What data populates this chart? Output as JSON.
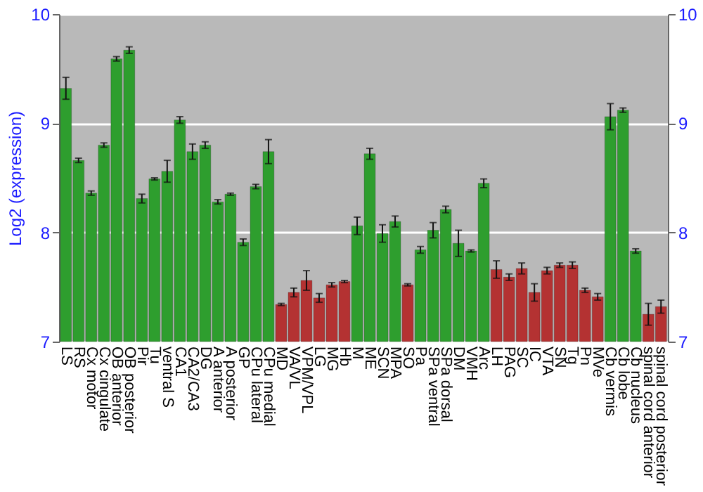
{
  "chart_data": {
    "type": "bar",
    "ylabel": "Log2 (expression)",
    "categories": [
      "LS",
      "RS",
      "Cx motor",
      "Cx cingulate",
      "OB anterior",
      "OB posterior",
      "Pir",
      "Tu",
      "ventral S",
      "CA1",
      "CA2/CA3",
      "DG",
      "A anterior",
      "A posterior",
      "GP",
      "CPu lateral",
      "CPu medial",
      "MD",
      "VA/VL",
      "VPM/VPL",
      "LG",
      "MG",
      "Hb",
      "M",
      "ME",
      "SCN",
      "MPA",
      "SO",
      "Pa",
      "SPa ventral",
      "SPa dorsal",
      "DM",
      "VMH",
      "Arc",
      "LH",
      "PAG",
      "SC",
      "IC",
      "VTA",
      "SN",
      "Tg",
      "Pn",
      "MVe",
      "Cb vermis",
      "Cb lobe",
      "Cb nucleus",
      "spinal cord anterior",
      "spinal cord posterior"
    ],
    "values": [
      9.32,
      8.66,
      8.36,
      8.8,
      9.59,
      9.67,
      8.31,
      8.49,
      8.56,
      9.03,
      8.74,
      8.8,
      8.28,
      8.35,
      7.91,
      8.42,
      8.74,
      7.34,
      7.45,
      7.56,
      7.4,
      7.52,
      7.55,
      8.06,
      8.72,
      7.99,
      8.1,
      7.52,
      7.84,
      8.02,
      8.21,
      7.9,
      7.83,
      8.45,
      7.66,
      7.59,
      7.67,
      7.45,
      7.65,
      7.7,
      7.7,
      7.47,
      7.41,
      9.06,
      9.12,
      7.83,
      7.25,
      7.32
    ],
    "errors": [
      0.1,
      0.02,
      0.02,
      0.02,
      0.02,
      0.03,
      0.04,
      0.01,
      0.1,
      0.03,
      0.07,
      0.03,
      0.02,
      0.01,
      0.03,
      0.02,
      0.11,
      0.01,
      0.04,
      0.09,
      0.04,
      0.02,
      0.01,
      0.08,
      0.05,
      0.08,
      0.05,
      0.01,
      0.03,
      0.07,
      0.03,
      0.12,
      0.01,
      0.04,
      0.08,
      0.03,
      0.05,
      0.08,
      0.03,
      0.02,
      0.03,
      0.02,
      0.03,
      0.12,
      0.02,
      0.02,
      0.1,
      0.06
    ],
    "colors": [
      "#2e9e2e",
      "#2e9e2e",
      "#2e9e2e",
      "#2e9e2e",
      "#2e9e2e",
      "#2e9e2e",
      "#2e9e2e",
      "#2e9e2e",
      "#2e9e2e",
      "#2e9e2e",
      "#2e9e2e",
      "#2e9e2e",
      "#2e9e2e",
      "#2e9e2e",
      "#2e9e2e",
      "#2e9e2e",
      "#2e9e2e",
      "#b43232",
      "#b43232",
      "#b43232",
      "#b43232",
      "#b43232",
      "#b43232",
      "#2e9e2e",
      "#2e9e2e",
      "#2e9e2e",
      "#2e9e2e",
      "#b43232",
      "#2e9e2e",
      "#2e9e2e",
      "#2e9e2e",
      "#2e9e2e",
      "#2e9e2e",
      "#2e9e2e",
      "#b43232",
      "#b43232",
      "#b43232",
      "#b43232",
      "#b43232",
      "#b43232",
      "#b43232",
      "#b43232",
      "#b43232",
      "#2e9e2e",
      "#2e9e2e",
      "#2e9e2e",
      "#b43232",
      "#b43232"
    ],
    "ylim": [
      7,
      10
    ],
    "yticks": [
      7,
      8,
      9,
      10
    ],
    "y2lim": [
      7,
      10
    ],
    "y2ticks": [
      7,
      8,
      9,
      10
    ],
    "grid": "y"
  }
}
